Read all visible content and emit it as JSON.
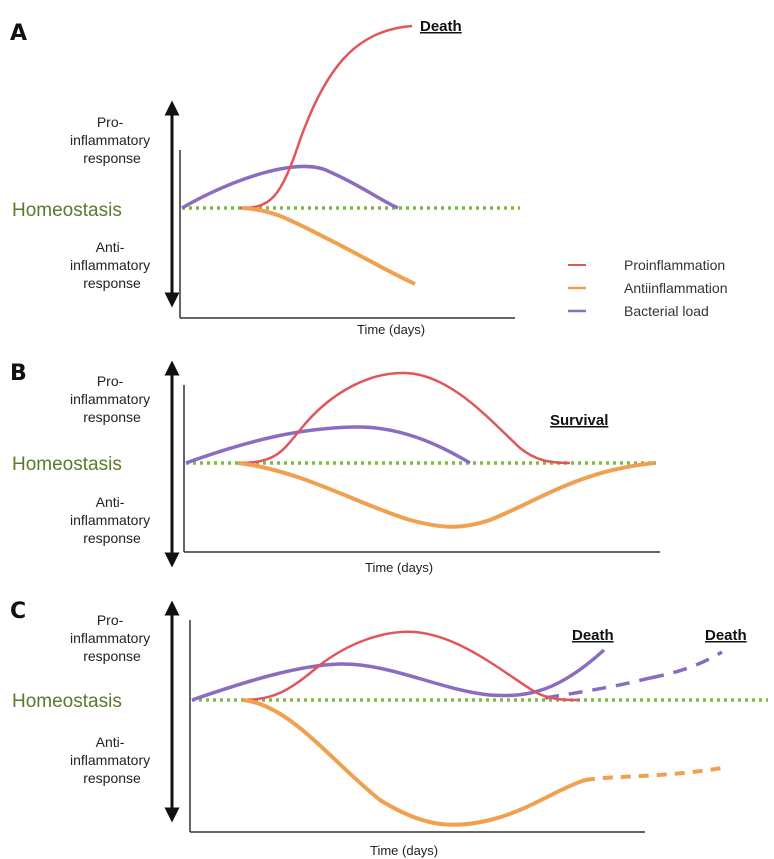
{
  "colors": {
    "proinflammation": "#e0565b",
    "antiinflammation": "#f0a04e",
    "bacterial_load": "#8a6cc0",
    "homeostasis": "#7fba42",
    "homeostasis_text": "#5a7a2c"
  },
  "legend": {
    "proinflammation": "Proinflammation",
    "antiinflammation": "Antiinflammation",
    "bacterial_load": "Bacterial load"
  },
  "panels": [
    {
      "label": "A",
      "pro_lines": [
        "Pro-",
        "inflammatory",
        "response"
      ],
      "homeostasis": "Homeostasis",
      "anti_lines": [
        "Anti-",
        "inflammatory",
        "response"
      ],
      "x_axis": "Time (days)",
      "outcomes": [
        "Death"
      ]
    },
    {
      "label": "B",
      "pro_lines": [
        "Pro-",
        "inflammatory",
        "response"
      ],
      "homeostasis": "Homeostasis",
      "anti_lines": [
        "Anti-",
        "inflammatory",
        "response"
      ],
      "x_axis": "Time (days)",
      "outcomes": [
        "Survival"
      ]
    },
    {
      "label": "C",
      "pro_lines": [
        "Pro-",
        "inflammatory",
        "response"
      ],
      "homeostasis": "Homeostasis",
      "anti_lines": [
        "Anti-",
        "inflammatory",
        "response"
      ],
      "x_axis": "Time (days)",
      "outcomes": [
        "Death",
        "Death"
      ]
    }
  ]
}
